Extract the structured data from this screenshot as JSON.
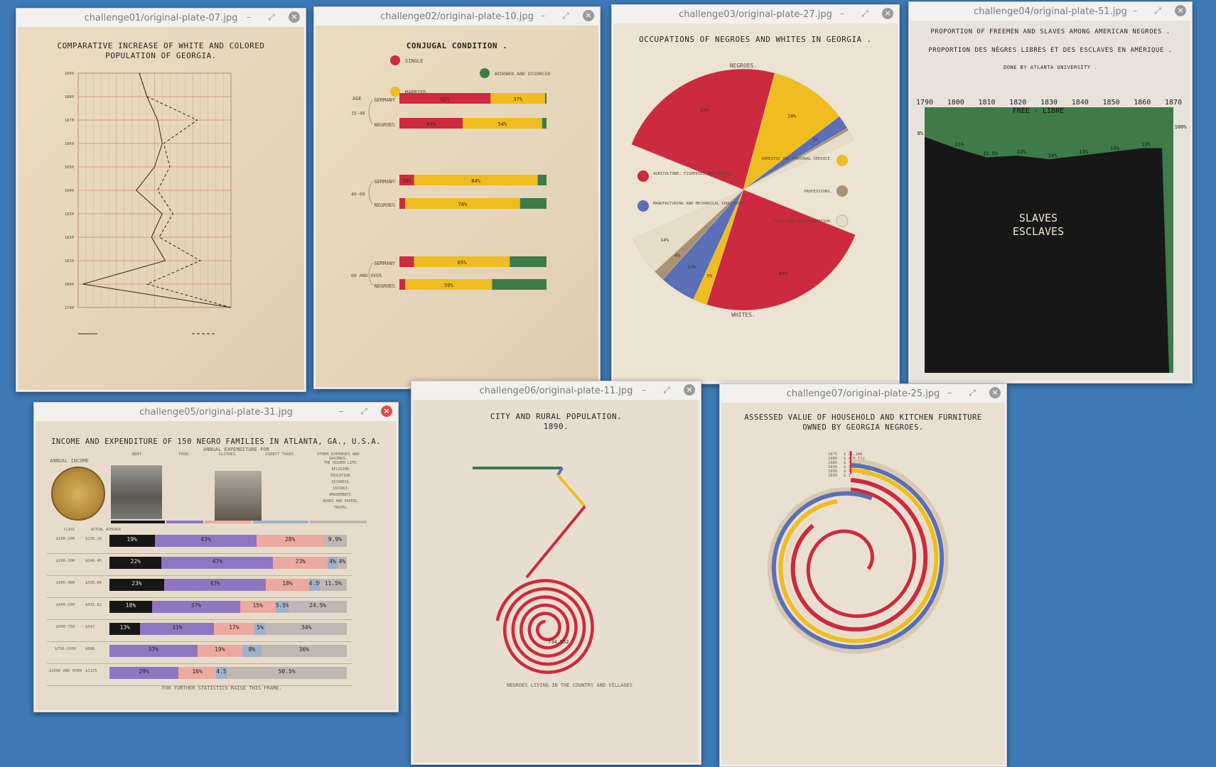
{
  "colors": {
    "desktop": "#3d7ab5",
    "crimson": "#cc2a3e",
    "gold": "#efbd1f",
    "green": "#3e7a4a",
    "blue": "#5a6fb5",
    "tan": "#a99274",
    "ivory": "#e6dcc7",
    "purple": "#8f76c3",
    "pink": "#eba9a0",
    "gray": "#c0b7b3",
    "black": "#171717"
  },
  "window_controls": {
    "minimize_icon": "–",
    "maximize_icon": "⤢",
    "close_icon": "×"
  },
  "windows": [
    {
      "title": "challenge01/original-plate-07.jpg"
    },
    {
      "title": "challenge02/original-plate-10.jpg"
    },
    {
      "title": "challenge03/original-plate-27.jpg"
    },
    {
      "title": "challenge04/original-plate-51.jpg"
    },
    {
      "title": "challenge05/original-plate-31.jpg"
    },
    {
      "title": "challenge06/original-plate-11.jpg"
    },
    {
      "title": "challenge07/original-plate-25.jpg"
    }
  ],
  "plates": {
    "p07": {
      "title_line1": "COMPARATIVE INCREASE OF WHITE AND COLORED",
      "title_line2": "POPULATION OF GEORGIA.",
      "years": [
        "1890",
        "1880",
        "1870",
        "1860",
        "1850",
        "1840",
        "1830",
        "1820",
        "1810",
        "1800",
        "1790"
      ],
      "chart_data": {
        "type": "line",
        "y": [
          "1790",
          "1800",
          "1810",
          "1820",
          "1830",
          "1840",
          "1850",
          "1860",
          "1870",
          "1880",
          "1890"
        ],
        "x_range": [
          0,
          100
        ],
        "series": [
          {
            "values": [
              100,
              3,
              57,
              48,
              55,
              38,
              50,
              55,
              52,
              45,
              40
            ]
          },
          {
            "values": [
              100,
              45,
              80,
              53,
              62,
              52,
              60,
              56,
              78,
              45,
              40
            ]
          }
        ]
      }
    },
    "p10": {
      "title": "CONJUGAL CONDITION .",
      "legend": {
        "single": "SINGLE",
        "married": "MARRIED",
        "widowed": "WIDOWED AND DIVORCED"
      },
      "age_label": "AGE",
      "groups": [
        {
          "label": "15-40",
          "rows": [
            {
              "name": "GERMANY",
              "values": [
                62,
                37,
                1
              ],
              "labels": [
                "62%",
                "37%",
                ""
              ]
            },
            {
              "name": "NEGROES",
              "values": [
                43,
                54,
                3
              ],
              "labels": [
                "43%",
                "54%",
                ""
              ]
            }
          ]
        },
        {
          "label": "40-60",
          "rows": [
            {
              "name": "GERMANY",
              "values": [
                10,
                84,
                6
              ],
              "labels": [
                "10%",
                "84%",
                ""
              ]
            },
            {
              "name": "NEGROES",
              "values": [
                4,
                78,
                18
              ],
              "labels": [
                "",
                "78%",
                ""
              ]
            }
          ]
        },
        {
          "label": "60 AND OVER",
          "rows": [
            {
              "name": "GERMANY",
              "values": [
                10,
                65,
                25
              ],
              "labels": [
                "",
                "65%",
                ""
              ]
            },
            {
              "name": "NEGROES",
              "values": [
                4,
                59,
                37
              ],
              "labels": [
                "",
                "59%",
                ""
              ]
            }
          ]
        }
      ]
    },
    "p27": {
      "title": "OCCUPATIONS OF NEGROES AND WHITES IN GEORGIA .",
      "negroes_label": "NEGROES.",
      "whites_label": "WHITES.",
      "legend_left": [
        "AGRICULTURE, FISHERIES AND MINING.",
        "MANUFACTURING AND MECHANICAL INDUSTRIES."
      ],
      "legend_right": [
        "DOMESTIC AND PERSONAL SERVICE.",
        "PROFESSIONS.",
        "TRADE AND TRANSPORTATION."
      ],
      "chart_data": {
        "type": "pie",
        "series": [
          {
            "name": "NEGROES",
            "values": [
              62,
              28,
              5,
              1,
              4
            ],
            "labels": [
              "62%",
              "28%",
              "5%",
              "",
              ""
            ]
          },
          {
            "name": "WHITES",
            "values": [
              64,
              5,
              13,
              4,
              14
            ],
            "labels": [
              "64%",
              "5%",
              "13%",
              "4%",
              "14%"
            ]
          }
        ]
      }
    },
    "p51": {
      "title_en": "PROPORTION OF FREEMEN AND SLAVES AMONG AMERICAN NEGROES .",
      "title_fr": "PROPORTION DES NÈGRES LIBRES ET DES ESCLAVES EN AMÉRIQUE .",
      "credit": "DONE BY ATLANTA UNIVERSITY .",
      "years": [
        "1790",
        "1800",
        "1810",
        "1820",
        "1830",
        "1840",
        "1850",
        "1860",
        "1870"
      ],
      "free_label": "FREE - LIBRE",
      "slaves_label1": "SLAVES",
      "slaves_label2": "ESCLAVES",
      "chart_data": {
        "type": "area",
        "x": [
          "1790",
          "1800",
          "1810",
          "1820",
          "1830",
          "1840",
          "1850",
          "1860",
          "1870"
        ],
        "free_percent": [
          8,
          11,
          13.5,
          13,
          14,
          13,
          12,
          11,
          100
        ],
        "labels": [
          "8%",
          "11%",
          "13.5%",
          "13%",
          "14%",
          "13%",
          "12%",
          "11%",
          "100%"
        ]
      }
    },
    "p31": {
      "title": "INCOME AND EXPENDITURE OF 150 NEGRO FAMILIES IN ATLANTA, GA., U.S.A.",
      "annual_expenditure": "ANNUAL EXPENDITURE FOR",
      "annual_income": "ANNUAL INCOME",
      "headers": [
        "RENT.",
        "FOOD.",
        "CLOTHES.",
        "DIRECT TAXES.",
        "OTHER EXPENSES AND SAVINGS."
      ],
      "other_list": [
        "THE HIGHER LIFE.",
        "RELIGION.",
        "EDUCATION.",
        "SICKNESS.",
        "SAVINGS.",
        "AMUSEMENTS.",
        "BOOKS AND PAPERS.",
        "TRAVEL."
      ],
      "col_class": "CLASS",
      "col_avg": "ACTUAL AVERAGE",
      "footer": "FOR FURTHER STATISTICS RAISE THIS FRAME.",
      "rows": [
        {
          "cls": "$100-200",
          "avg": "$139.10",
          "values": [
            19,
            43,
            28,
            0,
            9.9
          ],
          "labels": [
            "19%",
            "43%",
            "28%",
            "",
            "9.9%"
          ]
        },
        {
          "cls": "$200-300",
          "avg": "$249.45",
          "values": [
            22,
            47,
            23,
            4,
            4
          ],
          "labels": [
            "22%",
            "47%",
            "23%",
            "4%",
            "4%"
          ]
        },
        {
          "cls": "$300-400",
          "avg": "$335.66",
          "values": [
            23,
            43,
            18,
            4.5,
            11.5
          ],
          "labels": [
            "23%",
            "43%",
            "18%",
            "4.5%",
            "11.5%"
          ]
        },
        {
          "cls": "$400-500",
          "avg": "$433.82",
          "values": [
            18,
            37,
            15,
            5.5,
            24.5
          ],
          "labels": [
            "18%",
            "37%",
            "15%",
            "5.5%",
            "24.5%"
          ]
        },
        {
          "cls": "$500-750",
          "avg": "$547",
          "values": [
            13,
            31,
            17,
            5,
            34
          ],
          "labels": [
            "13%",
            "31%",
            "17%",
            "5%",
            "34%"
          ]
        },
        {
          "cls": "$750-1000",
          "avg": "$880",
          "values": [
            0,
            37,
            19,
            8,
            36
          ],
          "labels": [
            "",
            "37%",
            "19%",
            "8%",
            "36%"
          ]
        },
        {
          "cls": "$1000 AND OVER",
          "avg": "$1125",
          "values": [
            0,
            29,
            16,
            4.5,
            50.5
          ],
          "labels": [
            "",
            "29%",
            "16%",
            "4.5%",
            "50.5%"
          ]
        }
      ]
    },
    "p11": {
      "title_line1": "CITY AND RURAL POPULATION.",
      "title_line2": "1890.",
      "label_center": "734,952",
      "label_bottom": "NEGROES LIVING IN THE COUNTRY AND VILLAGES"
    },
    "p25": {
      "title_line1": "ASSESSED VALUE OF HOUSEHOLD AND KITCHEN FURNITURE",
      "title_line2": "OWNED BY GEORGIA NEGROES.",
      "legend": [
        {
          "year": "1875",
          "value": "$ 21,186"
        },
        {
          "year": "1880",
          "value": "$ 498,532"
        },
        {
          "year": "1885",
          "value": "$ 736,170"
        },
        {
          "year": "1890",
          "value": "$ 1,173,624"
        },
        {
          "year": "1895",
          "value": "$ 1,322,694"
        },
        {
          "year": "1899",
          "value": "$ 1,434,975"
        }
      ]
    }
  }
}
